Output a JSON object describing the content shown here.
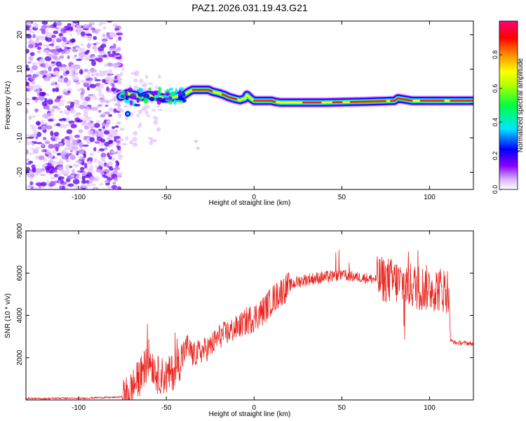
{
  "title": "PAZ1.2026.031.19.43.G21",
  "colors": {
    "snr_line": "#e8251f",
    "background": "#ffffff",
    "axis": "#000000",
    "colormap": [
      "#ffffff",
      "#8a00ff",
      "#0000ff",
      "#00e5ff",
      "#00ff40",
      "#ffff00",
      "#ff6a00",
      "#ff0000",
      "#ff0066"
    ]
  },
  "chart_data": [
    {
      "type": "heatmap",
      "xlabel": "Height of straight line (km)",
      "ylabel": "Frequency (Hz)",
      "xlim": [
        -130,
        125
      ],
      "ylim": [
        -25,
        24
      ],
      "xticks": [
        -100,
        -50,
        0,
        50,
        100
      ],
      "yticks": [
        -20,
        -10,
        0,
        10,
        20
      ],
      "noise_region_x": [
        -130,
        -76
      ],
      "ridge": {
        "x": [
          -76,
          -72,
          -68,
          -64,
          -60,
          -55,
          -50,
          -45,
          -40,
          -37,
          -35,
          -30,
          -26,
          -24,
          -20,
          -17,
          -15,
          -12,
          -8,
          -5,
          -4,
          -2,
          0,
          5,
          10,
          12,
          15,
          20,
          40,
          60,
          80,
          82,
          90,
          100,
          110,
          120,
          125
        ],
        "freq": [
          2,
          3,
          2.5,
          2,
          2.5,
          2,
          1.5,
          2,
          2.5,
          3.5,
          4,
          4,
          4,
          3.5,
          3,
          2.5,
          2,
          1.5,
          1,
          1.5,
          2.5,
          1.5,
          0.8,
          0.8,
          0.8,
          0.5,
          0.3,
          0.3,
          0.3,
          0.5,
          0.8,
          1.5,
          0.8,
          0.8,
          0.8,
          0.8,
          0.8
        ]
      },
      "colorbar": {
        "label": "Normalized spectral amplitude",
        "ticks": [
          "0.0",
          "0.2",
          "0.4",
          "0.6",
          "0.8"
        ],
        "range": [
          0,
          1
        ]
      }
    },
    {
      "type": "line",
      "xlabel": "Height of straight line (km)",
      "ylabel": "SNR (10 * v/v)",
      "xlim": [
        -130,
        125
      ],
      "ylim": [
        0,
        8000
      ],
      "xticks": [
        -100,
        -50,
        0,
        50,
        100
      ],
      "yticks": [
        2000,
        4000,
        6000,
        8000
      ],
      "series": [
        {
          "name": "SNR",
          "x": [
            -130,
            -120,
            -110,
            -100,
            -90,
            -80,
            -75,
            -72,
            -70,
            -65,
            -62,
            -60,
            -55,
            -50,
            -45,
            -40,
            -38,
            -35,
            -30,
            -25,
            -20,
            -15,
            -10,
            -5,
            0,
            5,
            10,
            15,
            20,
            25,
            30,
            35,
            40,
            45,
            50,
            55,
            60,
            65,
            70,
            75,
            80,
            85,
            90,
            95,
            100,
            105,
            110,
            111,
            112,
            115,
            120,
            125
          ],
          "y": [
            80,
            60,
            90,
            70,
            110,
            120,
            150,
            250,
            500,
            1100,
            1600,
            2000,
            1200,
            1100,
            1400,
            2200,
            2600,
            2100,
            2300,
            2500,
            3000,
            3200,
            3400,
            3700,
            3900,
            4200,
            4700,
            5100,
            5400,
            5600,
            5700,
            5750,
            5800,
            5850,
            5900,
            5850,
            5800,
            5750,
            5700,
            5700,
            5600,
            5500,
            5400,
            5300,
            5300,
            5250,
            5200,
            5200,
            2800,
            2700,
            2700,
            2650
          ]
        }
      ]
    }
  ]
}
